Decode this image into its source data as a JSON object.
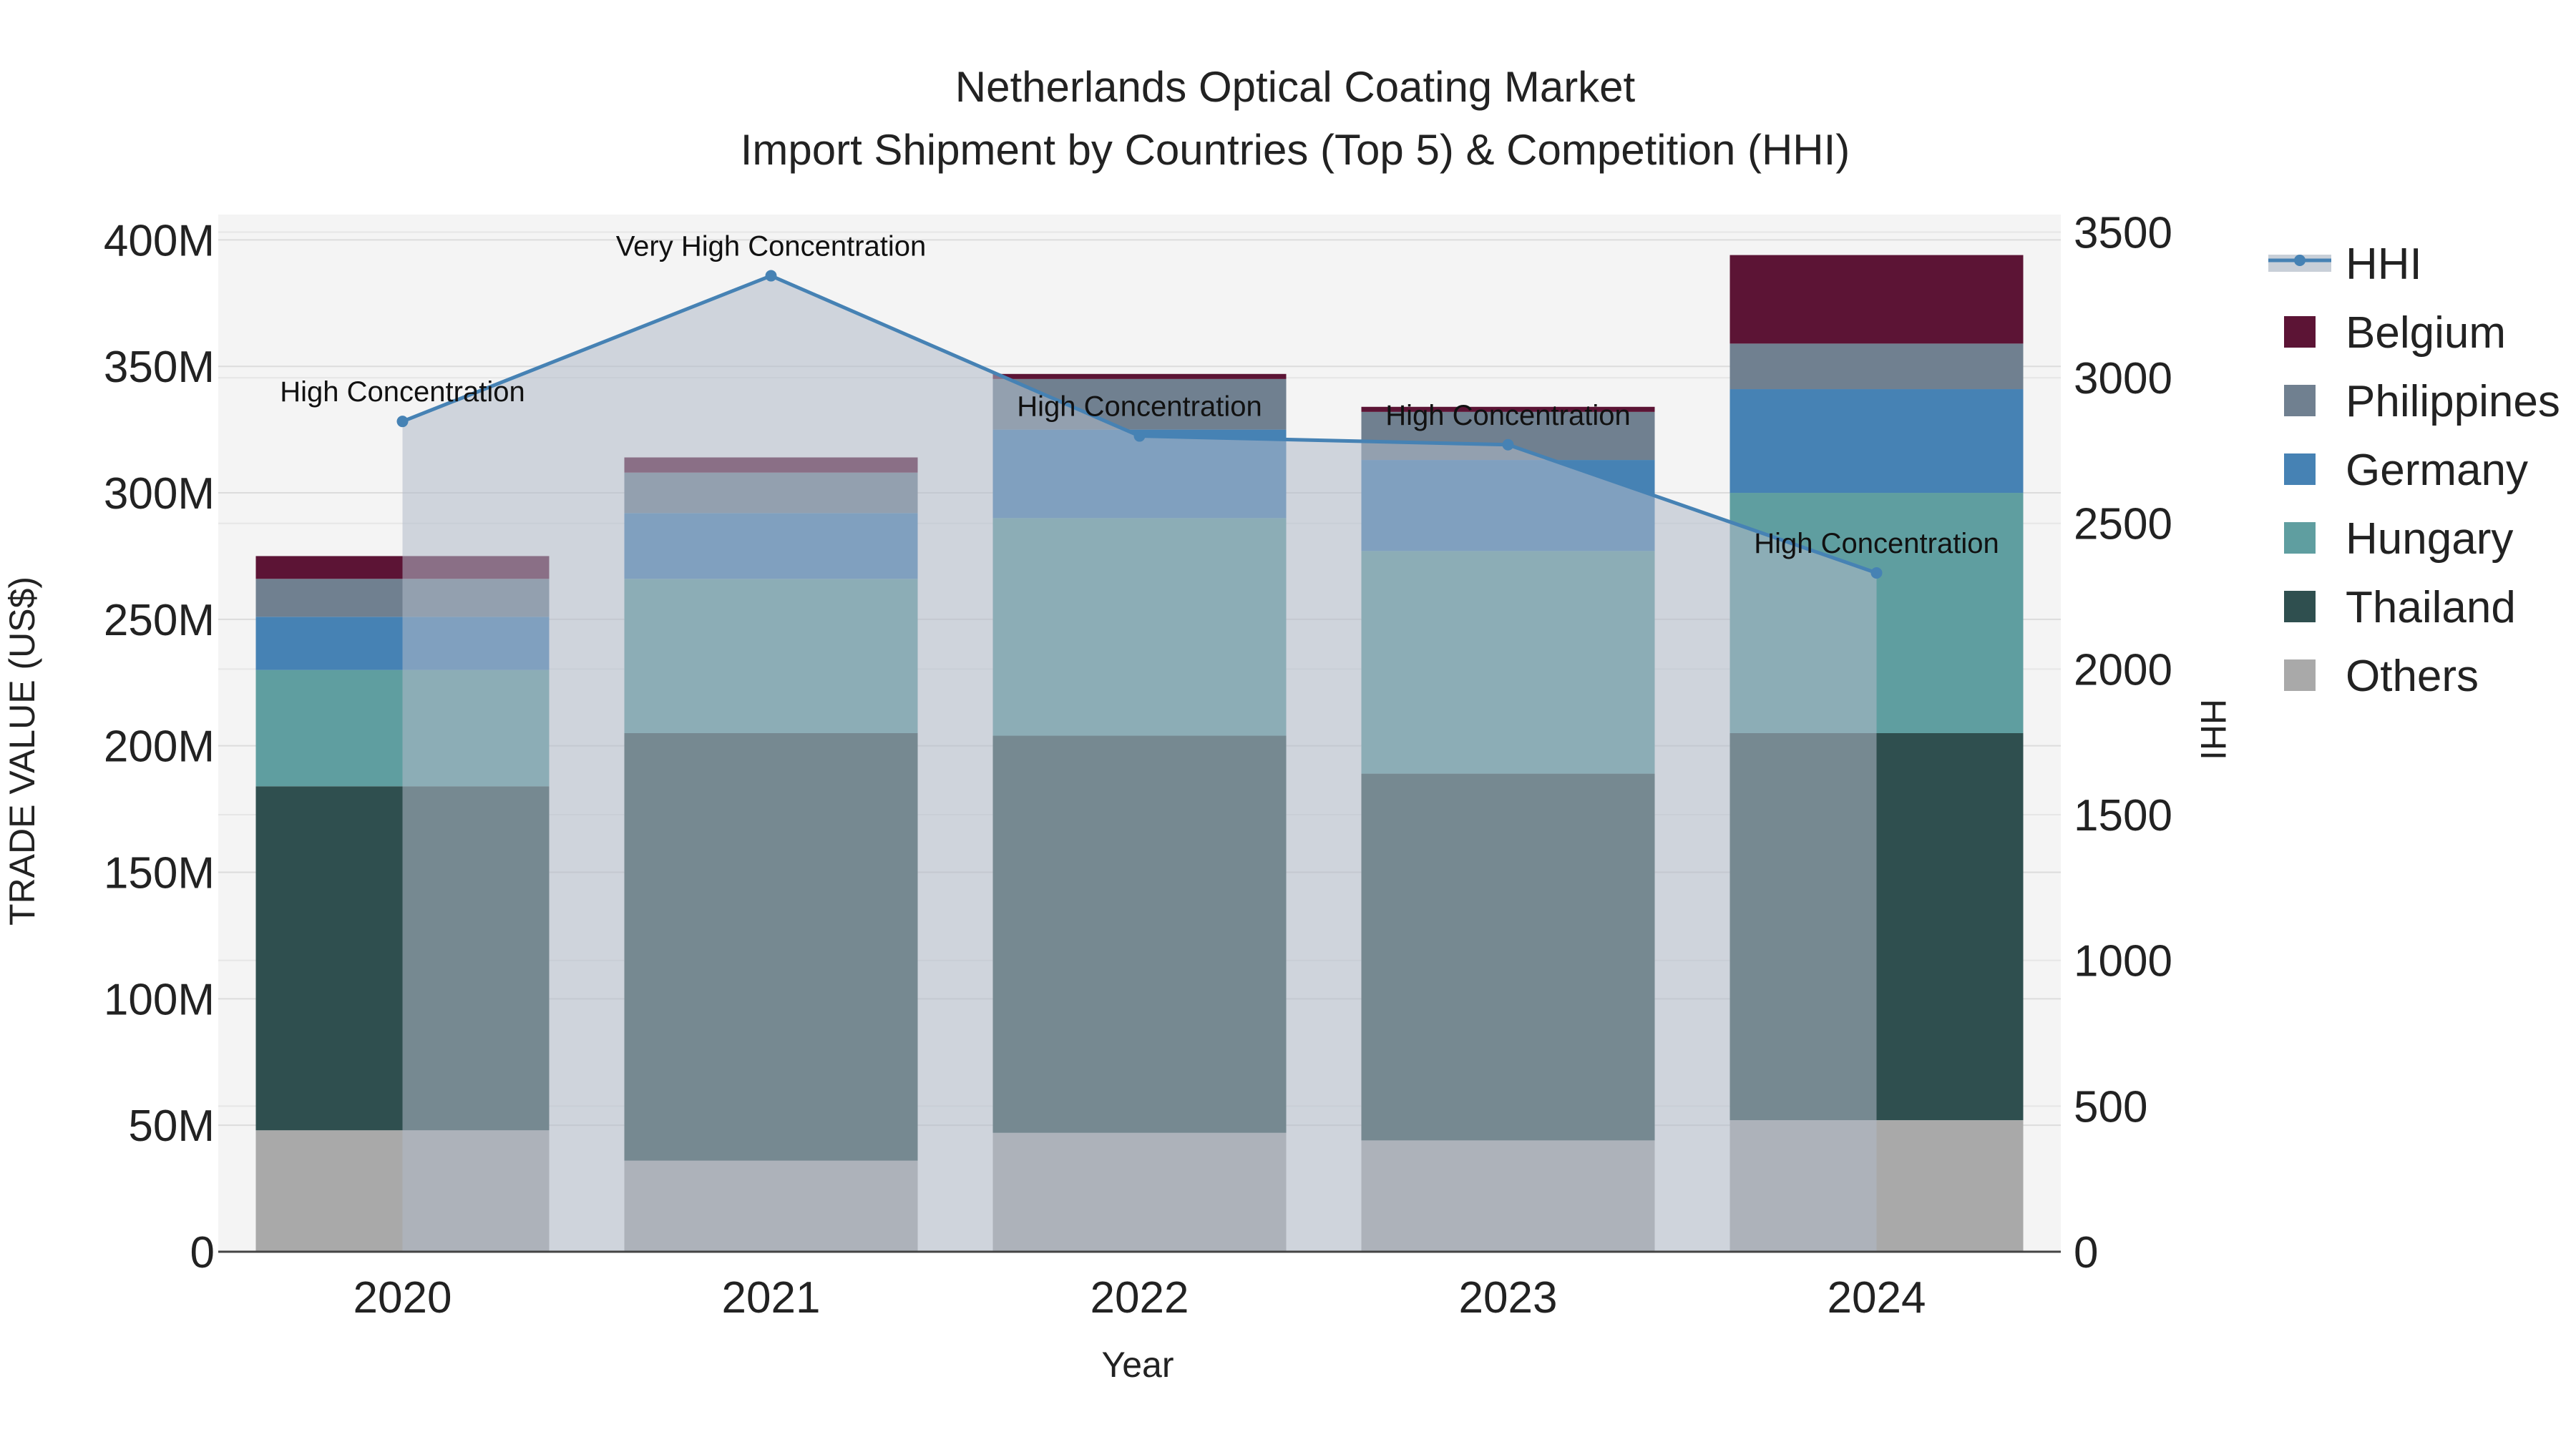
{
  "chart_data": {
    "type": "bar",
    "stacked": true,
    "title_line1": "Netherlands Optical Coating Market",
    "title_line2": "Import Shipment by Countries (Top 5) & Competition (HHI)",
    "xlabel": "Year",
    "ylabel": "TRADE VALUE (US$)",
    "y2label": "HHI",
    "categories": [
      "2020",
      "2021",
      "2022",
      "2023",
      "2024"
    ],
    "ylim": [
      0,
      410000000
    ],
    "y_ticks": [
      0,
      50000000,
      100000000,
      150000000,
      200000000,
      250000000,
      300000000,
      350000000,
      400000000
    ],
    "y_tick_labels": [
      "0",
      "50M",
      "100M",
      "150M",
      "200M",
      "250M",
      "300M",
      "350M",
      "400M"
    ],
    "y2lim": [
      0,
      3560
    ],
    "y2_ticks": [
      0,
      500,
      1000,
      1500,
      2000,
      2500,
      3000,
      3500
    ],
    "y2_tick_labels": [
      "0",
      "500",
      "1000",
      "1500",
      "2000",
      "2500",
      "3000",
      "3500"
    ],
    "series": [
      {
        "name": "Others",
        "color": "#a9a9a9",
        "values": [
          48000000,
          36000000,
          47000000,
          44000000,
          52000000
        ]
      },
      {
        "name": "Thailand",
        "color": "#2f4f4f",
        "values": [
          136000000,
          169000000,
          157000000,
          145000000,
          153000000
        ]
      },
      {
        "name": "Hungary",
        "color": "#5f9ea0",
        "values": [
          46000000,
          61000000,
          86000000,
          88000000,
          95000000
        ]
      },
      {
        "name": "Germany",
        "color": "#4682b4",
        "values": [
          21000000,
          26000000,
          35000000,
          36000000,
          41000000
        ]
      },
      {
        "name": "Philippines",
        "color": "#708090",
        "values": [
          15000000,
          16000000,
          20000000,
          19000000,
          18000000
        ]
      },
      {
        "name": "Belgium",
        "color": "#5c1435",
        "values": [
          9000000,
          6000000,
          2000000,
          2000000,
          35000000
        ]
      }
    ],
    "hhi": {
      "name": "HHI",
      "color": "#4682b4",
      "values": [
        2850,
        3350,
        2800,
        2770,
        2330
      ],
      "labels": [
        "High Concentration",
        "Very High Concentration",
        "High Concentration",
        "High Concentration",
        "High Concentration"
      ]
    },
    "legend_order": [
      "HHI",
      "Belgium",
      "Philippines",
      "Germany",
      "Hungary",
      "Thailand",
      "Others"
    ],
    "legend_position": "right",
    "grid": true
  }
}
